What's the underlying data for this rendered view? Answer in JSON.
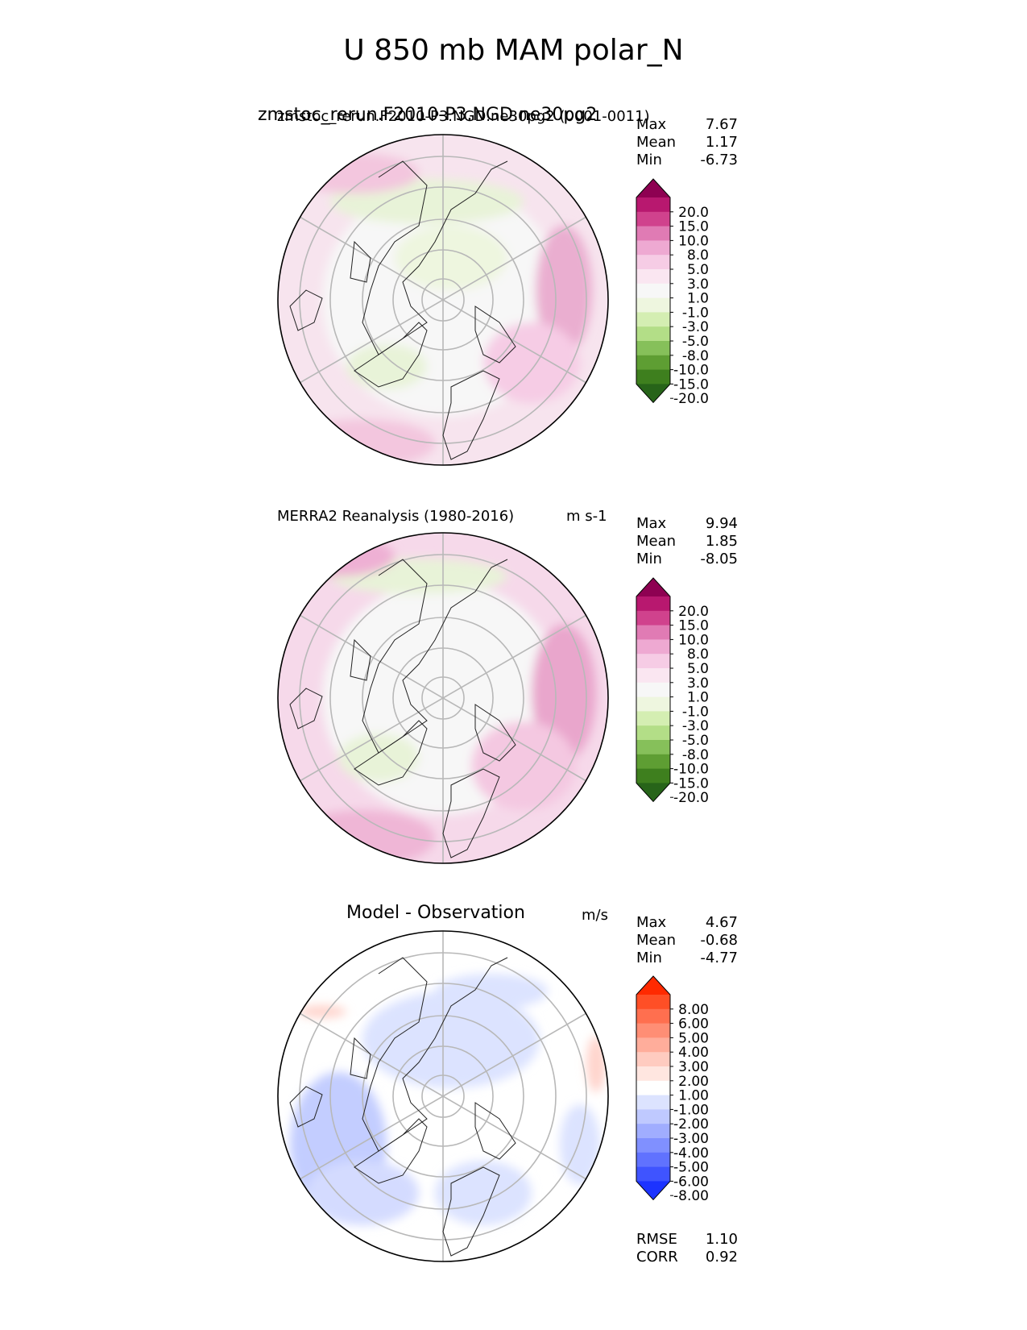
{
  "title": "U 850 mb MAM polar_N",
  "panels": [
    {
      "title_main": "zmstoc_rerun.F2010-P3.NGD.ne30pg2",
      "title_overlap": "zmstoc_rerun.F2010-P3.NGD.ne30pg2 (0001-0011)",
      "unit": "",
      "stats": {
        "max_label": "Max",
        "max": "7.67",
        "mean_label": "Mean",
        "mean": "1.17",
        "min_label": "Min",
        "min": "-6.73"
      },
      "colorbar": {
        "labels": [
          "20.0",
          "15.0",
          "10.0",
          "8.0",
          "5.0",
          "3.0",
          "1.0",
          "-1.0",
          "-3.0",
          "-5.0",
          "-8.0",
          "-10.0",
          "-15.0",
          "-20.0"
        ],
        "colors": [
          "#8e0152",
          "#b8186f",
          "#d0428d",
          "#e07bb4",
          "#eea9d2",
          "#f6cce5",
          "#fae6f1",
          "#f7f7f7",
          "#eef6df",
          "#d4eeb2",
          "#b3de87",
          "#86c05a",
          "#5e9e33",
          "#3e7f1e",
          "#276419"
        ]
      }
    },
    {
      "title_main": "MERRA2 Reanalysis (1980-2016)",
      "unit": "m s-1",
      "stats": {
        "max_label": "Max",
        "max": "9.94",
        "mean_label": "Mean",
        "mean": "1.85",
        "min_label": "Min",
        "min": "-8.05"
      },
      "colorbar": {
        "labels": [
          "20.0",
          "15.0",
          "10.0",
          "8.0",
          "5.0",
          "3.0",
          "1.0",
          "-1.0",
          "-3.0",
          "-5.0",
          "-8.0",
          "-10.0",
          "-15.0",
          "-20.0"
        ],
        "colors": [
          "#8e0152",
          "#b8186f",
          "#d0428d",
          "#e07bb4",
          "#eea9d2",
          "#f6cce5",
          "#fae6f1",
          "#f7f7f7",
          "#eef6df",
          "#d4eeb2",
          "#b3de87",
          "#86c05a",
          "#5e9e33",
          "#3e7f1e",
          "#276419"
        ]
      }
    },
    {
      "title_main": "Model - Observation",
      "unit": "m/s",
      "stats": {
        "max_label": "Max",
        "max": "4.67",
        "mean_label": "Mean",
        "mean": "-0.68",
        "min_label": "Min",
        "min": "-4.77"
      },
      "colorbar": {
        "labels": [
          "8.00",
          "6.00",
          "5.00",
          "4.00",
          "3.00",
          "2.00",
          "1.00",
          "-1.00",
          "-2.00",
          "-3.00",
          "-4.00",
          "-5.00",
          "-6.00",
          "-8.00"
        ],
        "colors": [
          "#ff2a00",
          "#ff4f26",
          "#ff6f4f",
          "#ff8e75",
          "#ffad9b",
          "#ffcbc0",
          "#ffe6e0",
          "#ffffff",
          "#dce3ff",
          "#bfc9ff",
          "#a0adff",
          "#8090ff",
          "#6072ff",
          "#3f54ff",
          "#1c33ff"
        ]
      },
      "metrics": {
        "rmse_label": "RMSE",
        "rmse": "1.10",
        "corr_label": "CORR",
        "corr": "0.92"
      }
    }
  ]
}
